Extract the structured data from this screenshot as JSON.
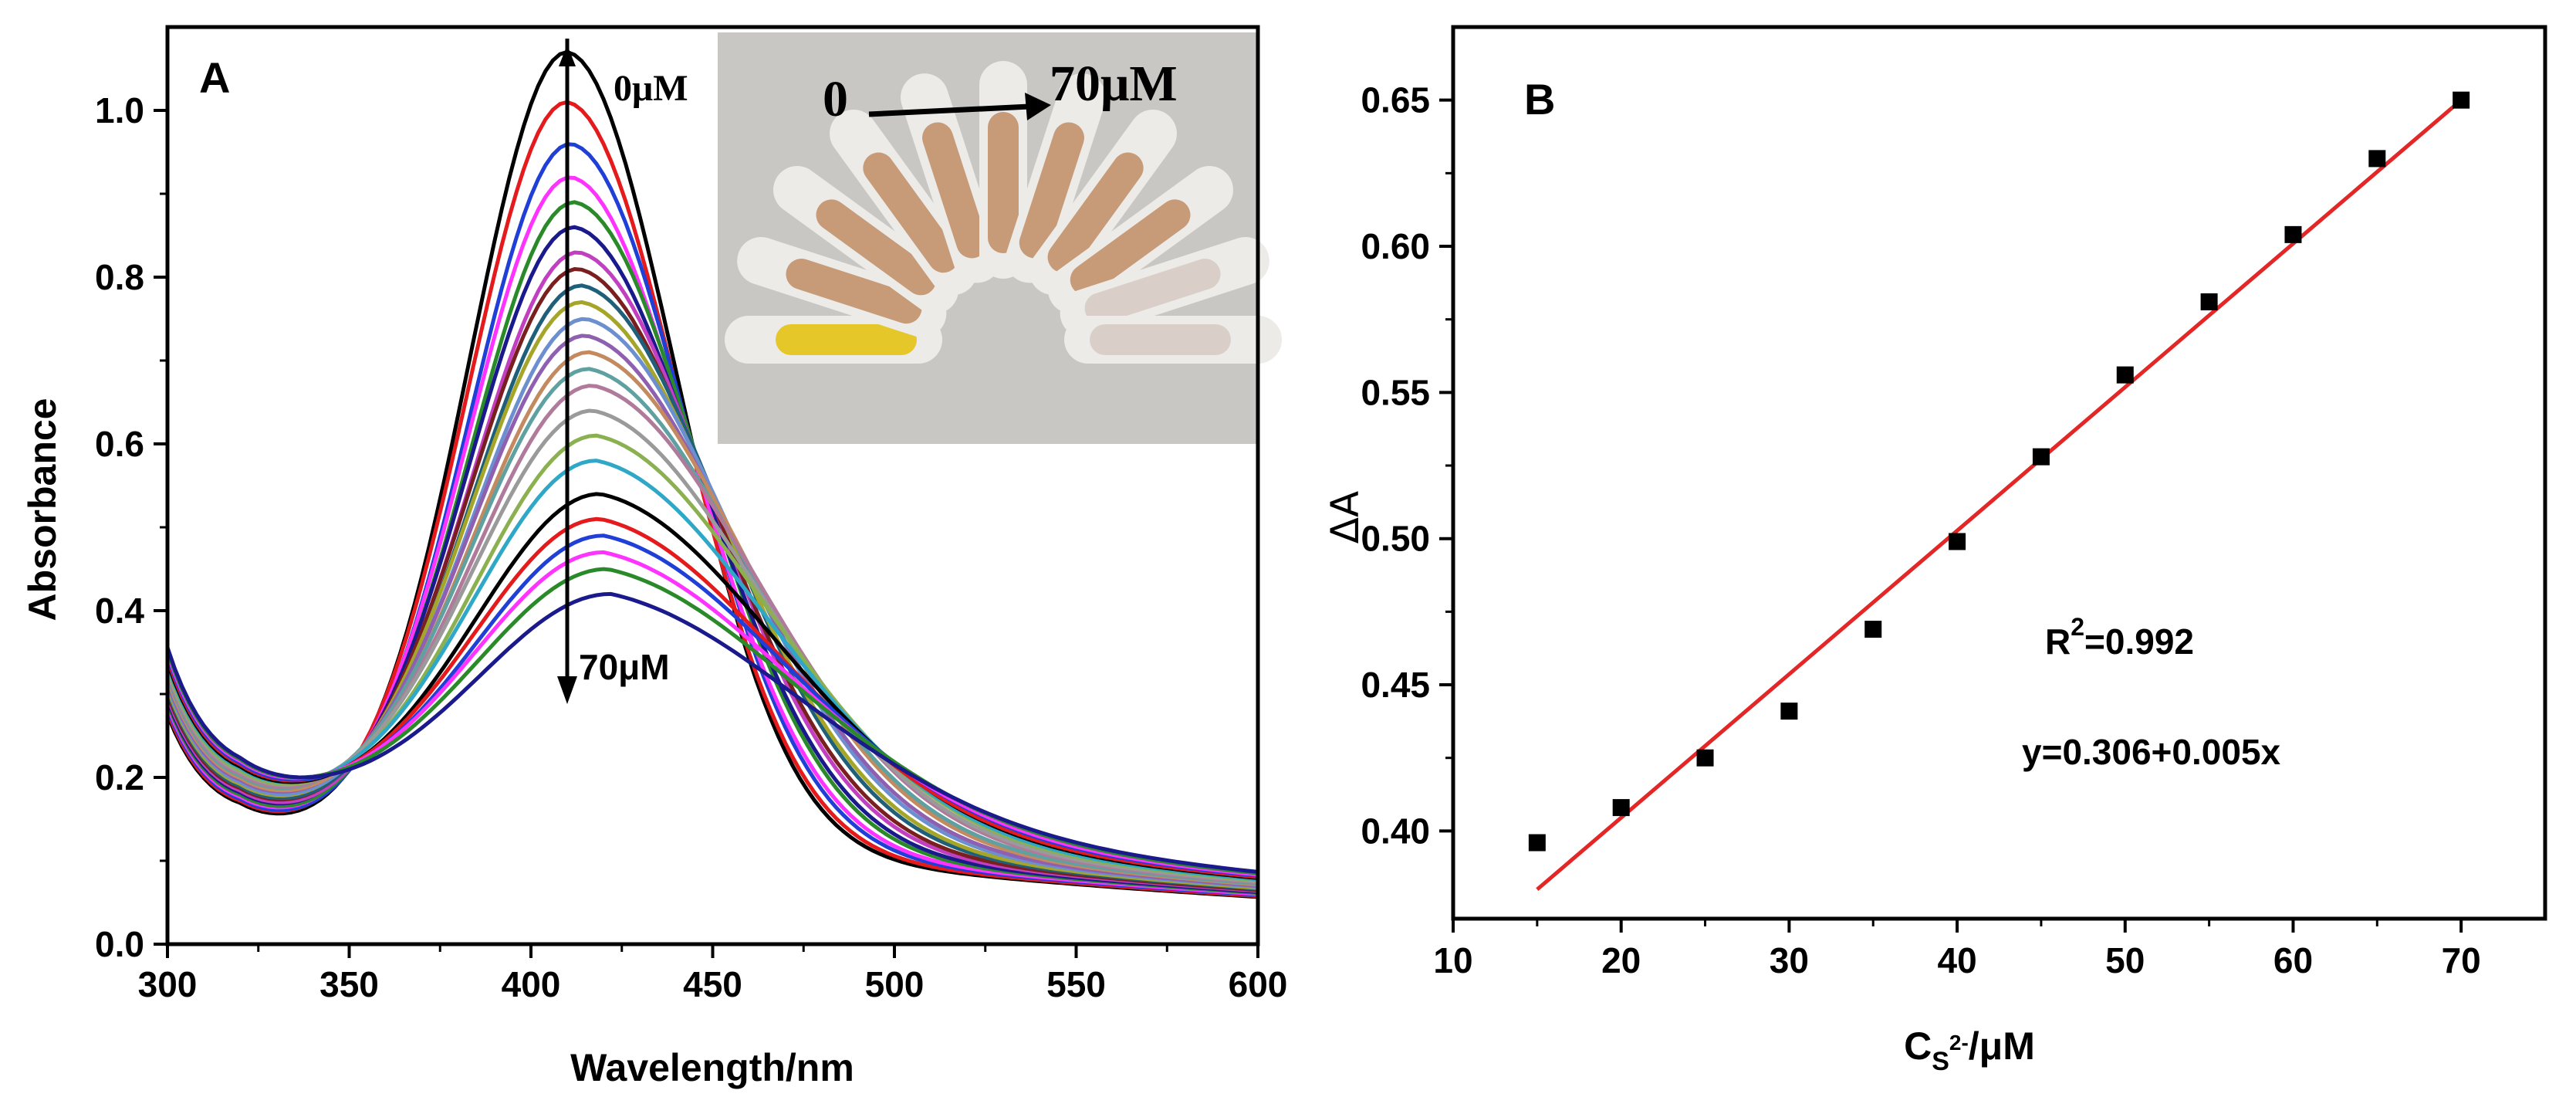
{
  "chart_data": [
    {
      "type": "line",
      "panel_label": "A",
      "xlabel": "Wavelength/nm",
      "ylabel": "Absorbance",
      "xlim": [
        300,
        600
      ],
      "ylim": [
        0.0,
        1.1
      ],
      "xticks": [
        300,
        350,
        400,
        450,
        500,
        550,
        600
      ],
      "yticks": [
        0.0,
        0.2,
        0.4,
        0.6,
        0.8,
        1.0
      ],
      "xtick_labels": [
        "300",
        "350",
        "400",
        "450",
        "500",
        "550",
        "600"
      ],
      "ytick_labels": [
        "0.0",
        "0.2",
        "0.4",
        "0.6",
        "0.8",
        "1.0"
      ],
      "annotation_top": "0μM",
      "annotation_bottom": "70μM",
      "series_note": "spectra for S2- from 0 to 70 μM; peak absorbance values at ~410 nm",
      "peak_x": [
        410,
        410,
        411,
        411,
        412,
        412,
        413,
        413,
        414,
        414,
        415,
        415,
        416,
        416,
        417,
        417,
        418,
        418,
        419,
        419,
        420,
        420,
        421,
        422
      ],
      "peak_values": [
        1.07,
        1.01,
        0.96,
        0.92,
        0.89,
        0.86,
        0.83,
        0.81,
        0.79,
        0.77,
        0.75,
        0.73,
        0.71,
        0.69,
        0.67,
        0.64,
        0.61,
        0.58,
        0.54,
        0.51,
        0.49,
        0.47,
        0.45,
        0.42
      ],
      "colors": [
        "#000000",
        "#e41a1c",
        "#1f3fd6",
        "#ff33ff",
        "#2a8a2a",
        "#1a1a8c",
        "#c23fc2",
        "#7a1f1f",
        "#1f5f7a",
        "#a5a52a",
        "#6c8fcf",
        "#8f5fb0",
        "#c48a5f",
        "#5fa0a0",
        "#b07a9a",
        "#9a9a9a",
        "#8ab04f",
        "#2fa8c8",
        "#000000",
        "#e41a1c",
        "#1f3fd6",
        "#ff33ff",
        "#2a8a2a",
        "#1a1a8c"
      ],
      "inset": {
        "start_label": "0",
        "end_label": "70μM"
      }
    },
    {
      "type": "scatter",
      "panel_label": "B",
      "xlabel": "C",
      "xlabel_sub": "S",
      "xlabel_sup": "2-",
      "xlabel_tail": "/μM",
      "ylabel": "ΔA",
      "xlim": [
        10,
        75
      ],
      "ylim": [
        0.37,
        0.675
      ],
      "xticks": [
        10,
        20,
        30,
        40,
        50,
        60,
        70
      ],
      "yticks": [
        0.4,
        0.45,
        0.5,
        0.55,
        0.6,
        0.65
      ],
      "xtick_labels": [
        "10",
        "20",
        "30",
        "40",
        "50",
        "60",
        "70"
      ],
      "ytick_labels": [
        "0.40",
        "0.45",
        "0.50",
        "0.55",
        "0.60",
        "0.65"
      ],
      "x": [
        15,
        20,
        25,
        30,
        35,
        40,
        45,
        50,
        55,
        60,
        65,
        70
      ],
      "y": [
        0.396,
        0.408,
        0.425,
        0.441,
        0.469,
        0.499,
        0.528,
        0.556,
        0.581,
        0.604,
        0.63,
        0.65
      ],
      "fit": {
        "intercept": 0.306,
        "slope": 0.005,
        "x_range": [
          15,
          70
        ],
        "color": "#e32626"
      },
      "r2_label": "R",
      "r2_sup": "2",
      "r2_value": "=0.992",
      "equation": "y=0.306+0.005x"
    }
  ]
}
